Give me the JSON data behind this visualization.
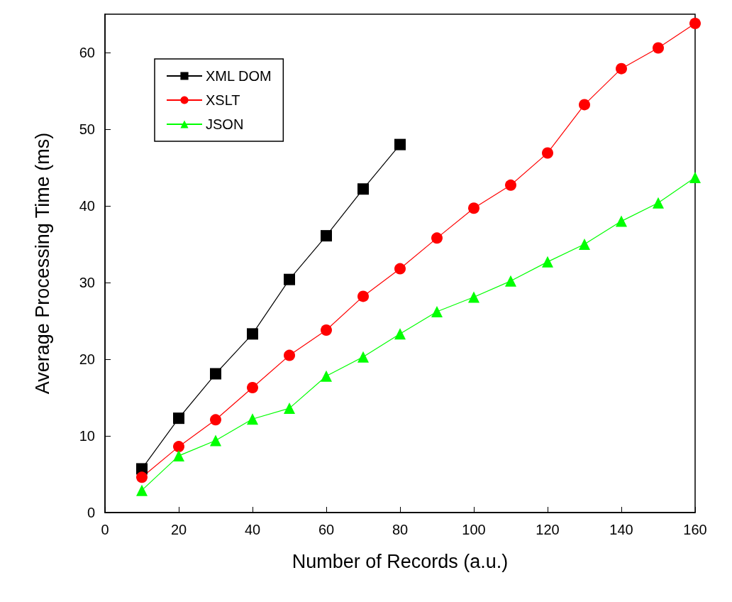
{
  "chart_data": {
    "type": "line",
    "xlabel": "Number of Records (a.u.)",
    "ylabel": "Average Processing Time (ms)",
    "xlim": [
      0,
      160
    ],
    "xticks": [
      0,
      20,
      40,
      60,
      80,
      100,
      120,
      140,
      160
    ],
    "ylim": [
      0,
      65
    ],
    "yticks": [
      0,
      10,
      20,
      30,
      40,
      50,
      60
    ],
    "grid": false,
    "legend": "top left",
    "line_style": "solid",
    "series": [
      {
        "name": "XML DOM",
        "color": "#000000",
        "marker": "square",
        "x": [
          10,
          20,
          30,
          40,
          50,
          60,
          70,
          80
        ],
        "values": [
          5.7,
          12.3,
          18.1,
          23.3,
          30.4,
          36.1,
          42.2,
          48
        ]
      },
      {
        "name": "XSLT",
        "color": "#ff0000",
        "marker": "circle",
        "x": [
          10,
          20,
          30,
          40,
          50,
          60,
          70,
          80,
          90,
          100,
          110,
          120,
          130,
          140,
          150,
          160
        ],
        "values": [
          4.6,
          8.6,
          12.1,
          16.3,
          20.5,
          23.8,
          28.2,
          31.8,
          35.8,
          39.7,
          42.7,
          46.9,
          53.2,
          57.9,
          60.6,
          63.8
        ]
      },
      {
        "name": "JSON",
        "color": "#00ff00",
        "marker": "triangle",
        "x": [
          10,
          20,
          30,
          40,
          50,
          60,
          70,
          80,
          90,
          100,
          110,
          120,
          130,
          140,
          150,
          160
        ],
        "values": [
          2.9,
          7.4,
          9.4,
          12.2,
          13.6,
          17.8,
          20.3,
          23.3,
          26.2,
          28.1,
          30.2,
          32.7,
          35.0,
          38.0,
          40.4,
          43.7
        ]
      }
    ]
  }
}
